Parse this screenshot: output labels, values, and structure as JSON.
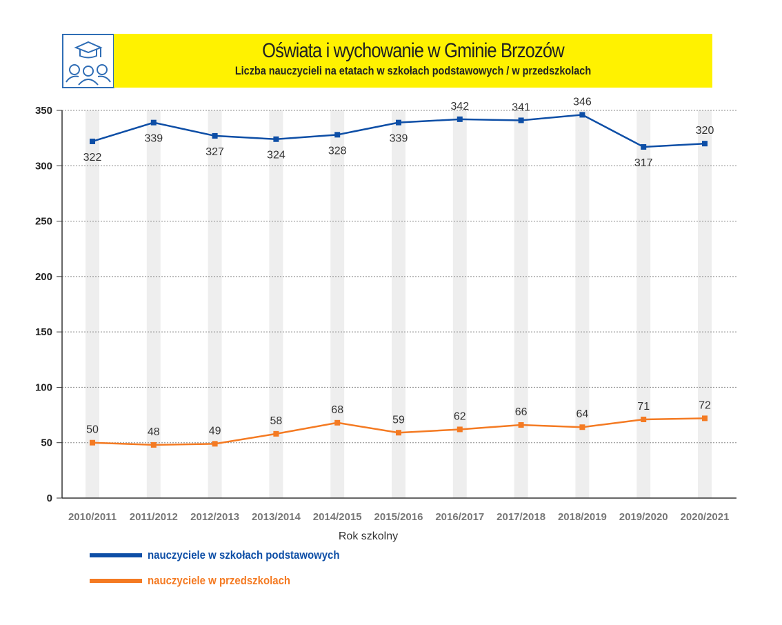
{
  "header": {
    "title": "Oświata i wychowanie w Gminie Brzozów",
    "subtitle": "Liczba nauczycieli na etatach w szkołach podstawowych / w przedszkolach",
    "icon": "graduation-students-icon"
  },
  "colors": {
    "blue": "#0d4ea6",
    "orange": "#f47a22",
    "header_bg": "#fff200",
    "band": "#eeeeee"
  },
  "chart_data": {
    "type": "line",
    "title": "Liczba nauczycieli na etatach w szkołach podstawowych / w przedszkolach",
    "xlabel": "Rok szkolny",
    "ylabel": "",
    "ylim": [
      0,
      350
    ],
    "yticks": [
      0,
      50,
      100,
      150,
      200,
      250,
      300,
      350
    ],
    "grid": true,
    "legend_position": "bottom-left",
    "categories": [
      "2010/2011",
      "2011/2012",
      "2012/2013",
      "2013/2014",
      "2014/2015",
      "2015/2016",
      "2016/2017",
      "2017/2018",
      "2018/2019",
      "2019/2020",
      "2020/2021"
    ],
    "series": [
      {
        "name": "nauczyciele w szkołach podstawowych",
        "color": "#0d4ea6",
        "values": [
          322,
          339,
          327,
          324,
          328,
          339,
          342,
          341,
          346,
          317,
          320
        ],
        "label_side": [
          "below",
          "below",
          "below",
          "below",
          "below",
          "below",
          "above",
          "above",
          "above",
          "below",
          "above"
        ]
      },
      {
        "name": "nauczyciele w przedszkolach",
        "color": "#f47a22",
        "values": [
          50,
          48,
          49,
          58,
          68,
          59,
          62,
          66,
          64,
          71,
          72
        ],
        "label_side": [
          "above",
          "above",
          "above",
          "above",
          "above",
          "above",
          "above",
          "above",
          "above",
          "above",
          "above"
        ]
      }
    ]
  }
}
